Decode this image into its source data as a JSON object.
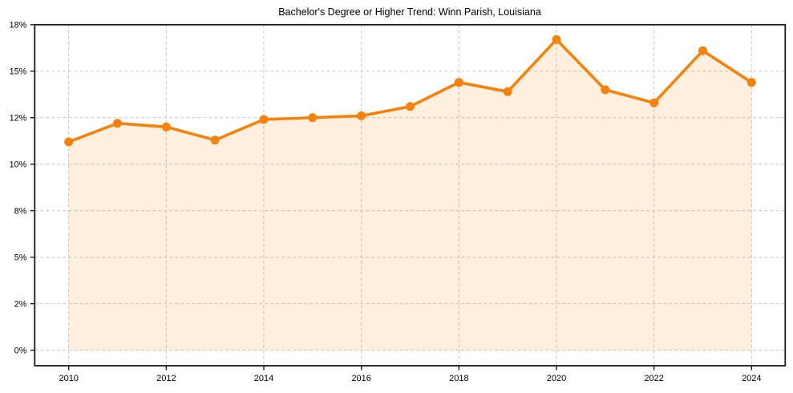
{
  "chart_data": {
    "type": "area",
    "title": "Bachelor's Degree or Higher Trend: Winn Parish, Louisiana",
    "x": [
      2010,
      2011,
      2012,
      2013,
      2014,
      2015,
      2016,
      2017,
      2018,
      2019,
      2020,
      2021,
      2022,
      2023,
      2024
    ],
    "values": [
      11.2,
      12.2,
      12.0,
      11.3,
      12.4,
      12.5,
      12.6,
      13.1,
      14.4,
      13.9,
      16.7,
      14.0,
      13.3,
      16.1,
      14.4
    ],
    "xlabel": "",
    "ylabel": "",
    "x_tick_values": [
      2010,
      2012,
      2014,
      2016,
      2018,
      2020,
      2022,
      2024
    ],
    "x_tick_labels": [
      "2010",
      "2012",
      "2014",
      "2016",
      "2018",
      "2020",
      "2022",
      "2024"
    ],
    "y_tick_values": [
      0,
      2.5,
      5,
      7.5,
      10,
      12.5,
      15,
      17.5
    ],
    "y_tick_labels": [
      "0%",
      "2%",
      "5%",
      "8%",
      "10%",
      "12%",
      "15%",
      "18%"
    ],
    "ylim": [
      -0.9,
      17.5
    ],
    "xlim": [
      2009.3,
      2024.7
    ],
    "grid": true,
    "legend": false,
    "marker": "circle",
    "colors": {
      "line": "#f5820b",
      "fill_rgba": "rgba(245,130,11,0.13)",
      "grid": "#cbcbcb",
      "axis": "#1a1a1a",
      "text": "#000000",
      "background": "#ffffff"
    }
  }
}
